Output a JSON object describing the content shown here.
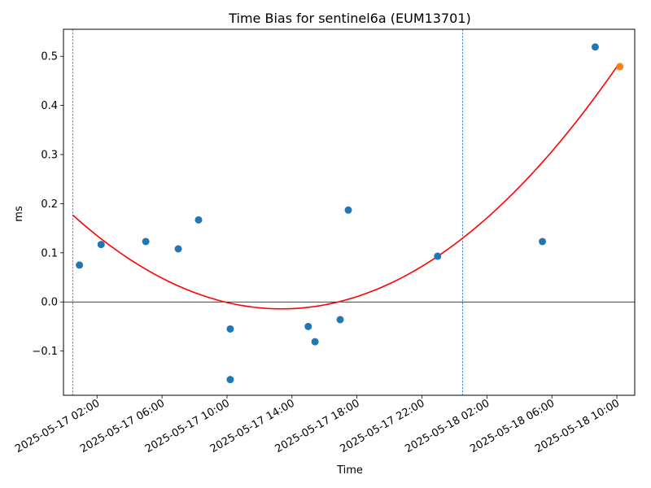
{
  "chart_data": {
    "type": "scatter",
    "title": "Time Bias for sentinel6a (EUM13701)",
    "xlabel": "Time",
    "ylabel": "ms",
    "x_range": [
      "2025-05-16T23:56",
      "2025-05-18T11:06"
    ],
    "ylim": [
      -0.19,
      0.555
    ],
    "x_ticks": [
      {
        "t": "2025-05-17T02:00",
        "label": "2025-05-17 02:00"
      },
      {
        "t": "2025-05-17T06:00",
        "label": "2025-05-17 06:00"
      },
      {
        "t": "2025-05-17T10:00",
        "label": "2025-05-17 10:00"
      },
      {
        "t": "2025-05-17T14:00",
        "label": "2025-05-17 14:00"
      },
      {
        "t": "2025-05-17T18:00",
        "label": "2025-05-17 18:00"
      },
      {
        "t": "2025-05-17T22:00",
        "label": "2025-05-17 22:00"
      },
      {
        "t": "2025-05-18T02:00",
        "label": "2025-05-18 02:00"
      },
      {
        "t": "2025-05-18T06:00",
        "label": "2025-05-18 06:00"
      },
      {
        "t": "2025-05-18T10:00",
        "label": "2025-05-18 10:00"
      }
    ],
    "y_ticks": [
      {
        "v": -0.1,
        "label": "−0.1"
      },
      {
        "v": 0.0,
        "label": "0.0"
      },
      {
        "v": 0.1,
        "label": "0.1"
      },
      {
        "v": 0.2,
        "label": "0.2"
      },
      {
        "v": 0.3,
        "label": "0.3"
      },
      {
        "v": 0.4,
        "label": "0.4"
      },
      {
        "v": 0.5,
        "label": "0.5"
      }
    ],
    "vlines": [
      "2025-05-17T00:30",
      "2025-05-18T00:30"
    ],
    "zero_line": 0,
    "series": [
      {
        "color": "#1f77b4",
        "points": [
          {
            "x": "2025-05-17T00:55",
            "y": 0.075
          },
          {
            "x": "2025-05-17T02:15",
            "y": 0.117
          },
          {
            "x": "2025-05-17T05:00",
            "y": 0.123
          },
          {
            "x": "2025-05-17T07:00",
            "y": 0.108
          },
          {
            "x": "2025-05-17T08:15",
            "y": 0.167
          },
          {
            "x": "2025-05-17T10:12",
            "y": -0.055
          },
          {
            "x": "2025-05-17T10:12",
            "y": -0.158
          },
          {
            "x": "2025-05-17T15:00",
            "y": -0.05
          },
          {
            "x": "2025-05-17T15:25",
            "y": -0.081
          },
          {
            "x": "2025-05-17T16:58",
            "y": -0.036
          },
          {
            "x": "2025-05-17T17:28",
            "y": 0.187
          },
          {
            "x": "2025-05-17T22:58",
            "y": 0.093
          },
          {
            "x": "2025-05-18T05:25",
            "y": 0.123
          },
          {
            "x": "2025-05-18T08:40",
            "y": 0.519
          }
        ]
      },
      {
        "color": "#ff7f0e",
        "points": [
          {
            "x": "2025-05-18T10:11",
            "y": 0.479
          }
        ]
      }
    ],
    "fit": {
      "color": "#ff0000",
      "points": [
        {
          "x": "2025-05-17T00:30",
          "y": 0.177
        },
        {
          "x": "2025-05-17T13:05",
          "y": -0.014
        },
        {
          "x": "2025-05-18T10:00",
          "y": 0.479
        }
      ]
    }
  }
}
